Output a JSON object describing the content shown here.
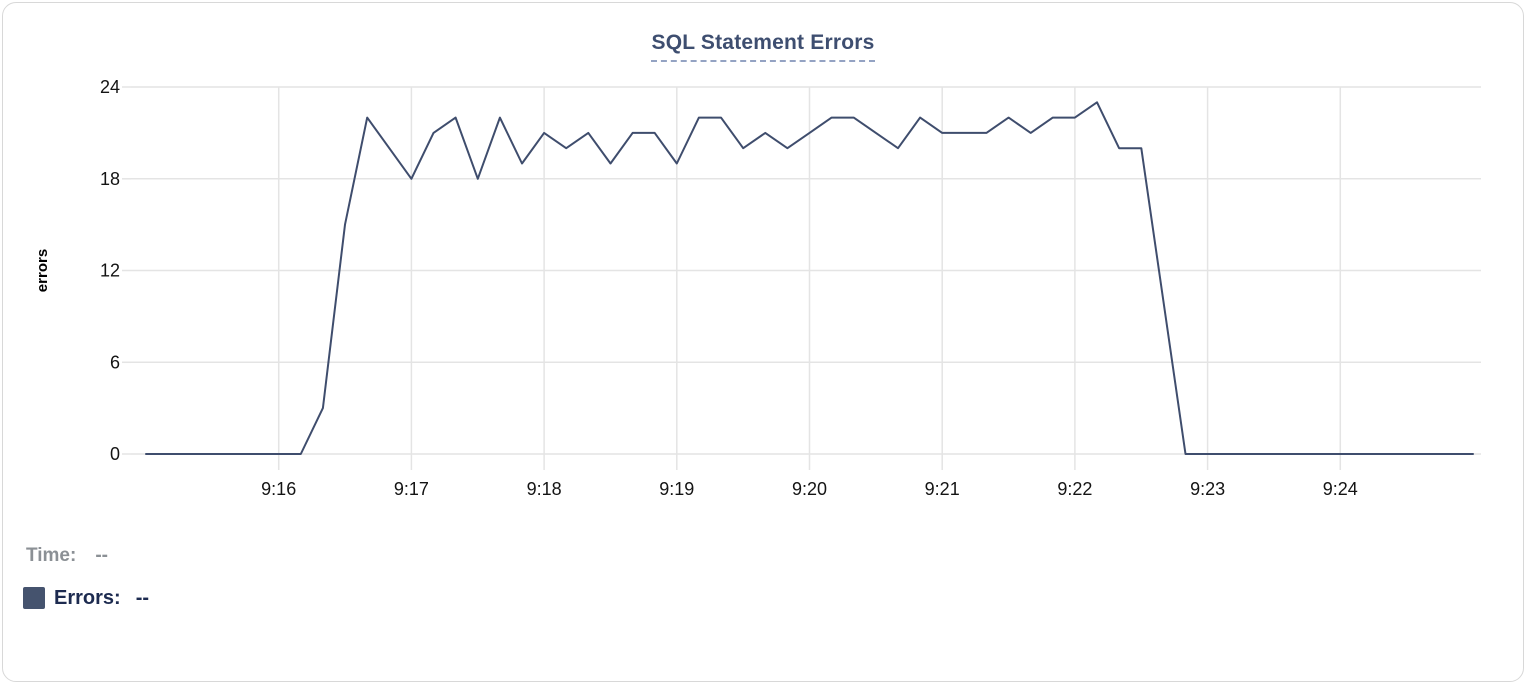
{
  "card": {
    "title": "SQL Statement Errors"
  },
  "hover_readout": {
    "time_label": "Time:",
    "time_value": "--",
    "errors_label": "Errors:",
    "errors_value": "--"
  },
  "colors": {
    "line": "#3f4d6d",
    "legend_swatch": "#45536e",
    "title_text": "#3e4e70",
    "title_underline": "#94a3c3",
    "grid": "#e4e4e4",
    "axis_text": "#141414",
    "time_label_text": "#8b9095",
    "errors_label_text": "#1d2b50",
    "card_border": "#d8d8d8",
    "background": "#ffffff"
  },
  "chart_data": {
    "type": "line",
    "title": "SQL Statement Errors",
    "xlabel": "",
    "ylabel": "errors",
    "ylim": [
      0,
      24
    ],
    "yticks": [
      0,
      6,
      12,
      18,
      24
    ],
    "xticks": [
      "9:16",
      "9:17",
      "9:18",
      "9:19",
      "9:20",
      "9:21",
      "9:22",
      "9:23",
      "9:24"
    ],
    "x_range": [
      "9:15:00",
      "9:25:00"
    ],
    "grid": true,
    "legend_position": "bottom-left",
    "series": [
      {
        "name": "Errors",
        "color": "#3f4d6d",
        "x": [
          "9:15:00",
          "9:15:10",
          "9:15:20",
          "9:15:30",
          "9:15:40",
          "9:15:50",
          "9:16:00",
          "9:16:10",
          "9:16:20",
          "9:16:30",
          "9:16:40",
          "9:16:50",
          "9:17:00",
          "9:17:10",
          "9:17:20",
          "9:17:30",
          "9:17:40",
          "9:17:50",
          "9:18:00",
          "9:18:10",
          "9:18:20",
          "9:18:30",
          "9:18:40",
          "9:18:50",
          "9:19:00",
          "9:19:10",
          "9:19:20",
          "9:19:30",
          "9:19:40",
          "9:19:50",
          "9:20:00",
          "9:20:10",
          "9:20:20",
          "9:20:30",
          "9:20:40",
          "9:20:50",
          "9:21:00",
          "9:21:10",
          "9:21:20",
          "9:21:30",
          "9:21:40",
          "9:21:50",
          "9:22:00",
          "9:22:10",
          "9:22:20",
          "9:22:30",
          "9:22:40",
          "9:22:50",
          "9:23:00",
          "9:23:10",
          "9:23:20",
          "9:23:30",
          "9:23:40",
          "9:23:50",
          "9:24:00",
          "9:24:10",
          "9:24:20",
          "9:24:30",
          "9:24:40",
          "9:24:50",
          "9:25:00"
        ],
        "values": [
          0,
          0,
          0,
          0,
          0,
          0,
          0,
          0,
          3,
          15,
          22,
          20,
          18,
          21,
          22,
          18,
          22,
          19,
          21,
          20,
          21,
          19,
          21,
          21,
          19,
          22,
          22,
          20,
          21,
          20,
          21,
          22,
          22,
          21,
          20,
          22,
          21,
          21,
          21,
          22,
          21,
          22,
          22,
          23,
          20,
          20,
          10,
          0,
          0,
          0,
          0,
          0,
          0,
          0,
          0,
          0,
          0,
          0,
          0,
          0,
          0
        ]
      }
    ]
  }
}
